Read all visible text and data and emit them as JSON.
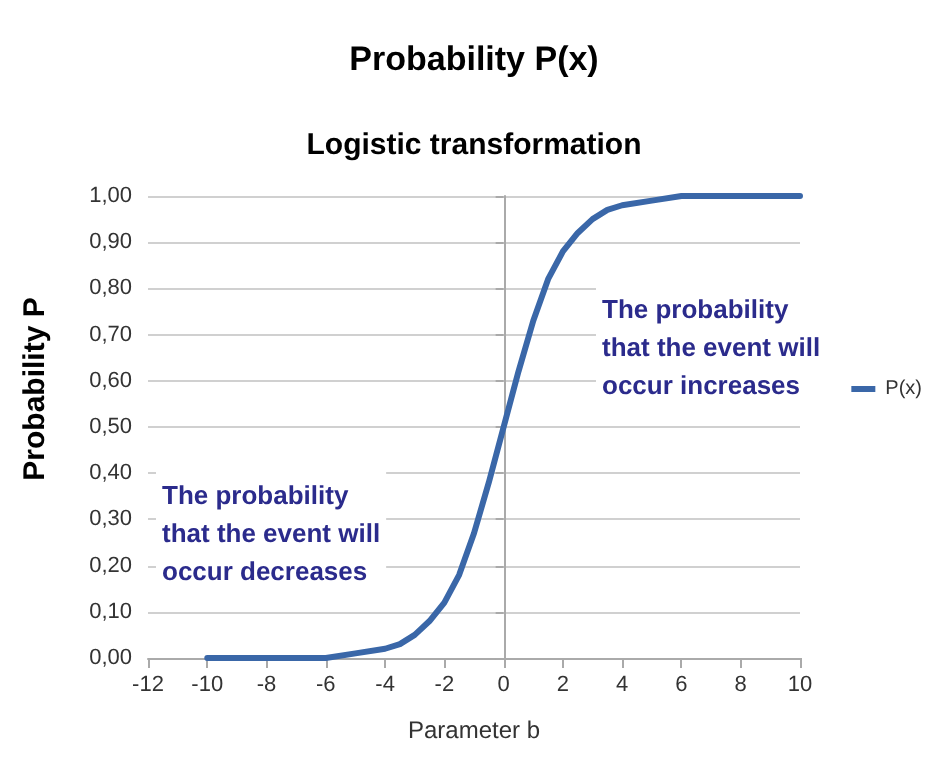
{
  "chart_data": {
    "type": "line",
    "title": "Probability P(x)",
    "subtitle": "Logistic transformation",
    "xlabel": "Parameter b",
    "ylabel": "Probability P",
    "x": [
      -10,
      -8,
      -6,
      -5,
      -4,
      -3.5,
      -3,
      -2.5,
      -2,
      -1.5,
      -1,
      -0.5,
      0,
      0.5,
      1,
      1.5,
      2,
      2.5,
      3,
      3.5,
      4,
      5,
      6,
      8,
      10
    ],
    "series": [
      {
        "name": "P(x)",
        "color": "#3a67a8",
        "values": [
          0,
          0,
          0,
          0.01,
          0.02,
          0.03,
          0.05,
          0.08,
          0.12,
          0.18,
          0.27,
          0.38,
          0.5,
          0.62,
          0.73,
          0.82,
          0.88,
          0.92,
          0.95,
          0.97,
          0.98,
          0.99,
          1,
          1,
          1
        ]
      }
    ],
    "xlim": [
      -12,
      10
    ],
    "xticks": [
      -12,
      -10,
      -8,
      -6,
      -4,
      -2,
      0,
      2,
      4,
      6,
      8,
      10
    ],
    "ylim": [
      0,
      1
    ],
    "yticks": [
      {
        "value": 0,
        "label": "0,00"
      },
      {
        "value": 0.1,
        "label": "0,10"
      },
      {
        "value": 0.2,
        "label": "0,20"
      },
      {
        "value": 0.3,
        "label": "0,30"
      },
      {
        "value": 0.4,
        "label": "0,40"
      },
      {
        "value": 0.5,
        "label": "0,50"
      },
      {
        "value": 0.6,
        "label": "0,60"
      },
      {
        "value": 0.7,
        "label": "0,70"
      },
      {
        "value": 0.8,
        "label": "0,80"
      },
      {
        "value": 0.9,
        "label": "0,90"
      },
      {
        "value": 1,
        "label": "1,00"
      }
    ],
    "annotations": [
      "The probability\nthat the event will\noccur decreases",
      "The probability\nthat the event will\noccur increases"
    ],
    "grid": "y",
    "legend": "right",
    "marker": "none",
    "line_style": "solid"
  }
}
